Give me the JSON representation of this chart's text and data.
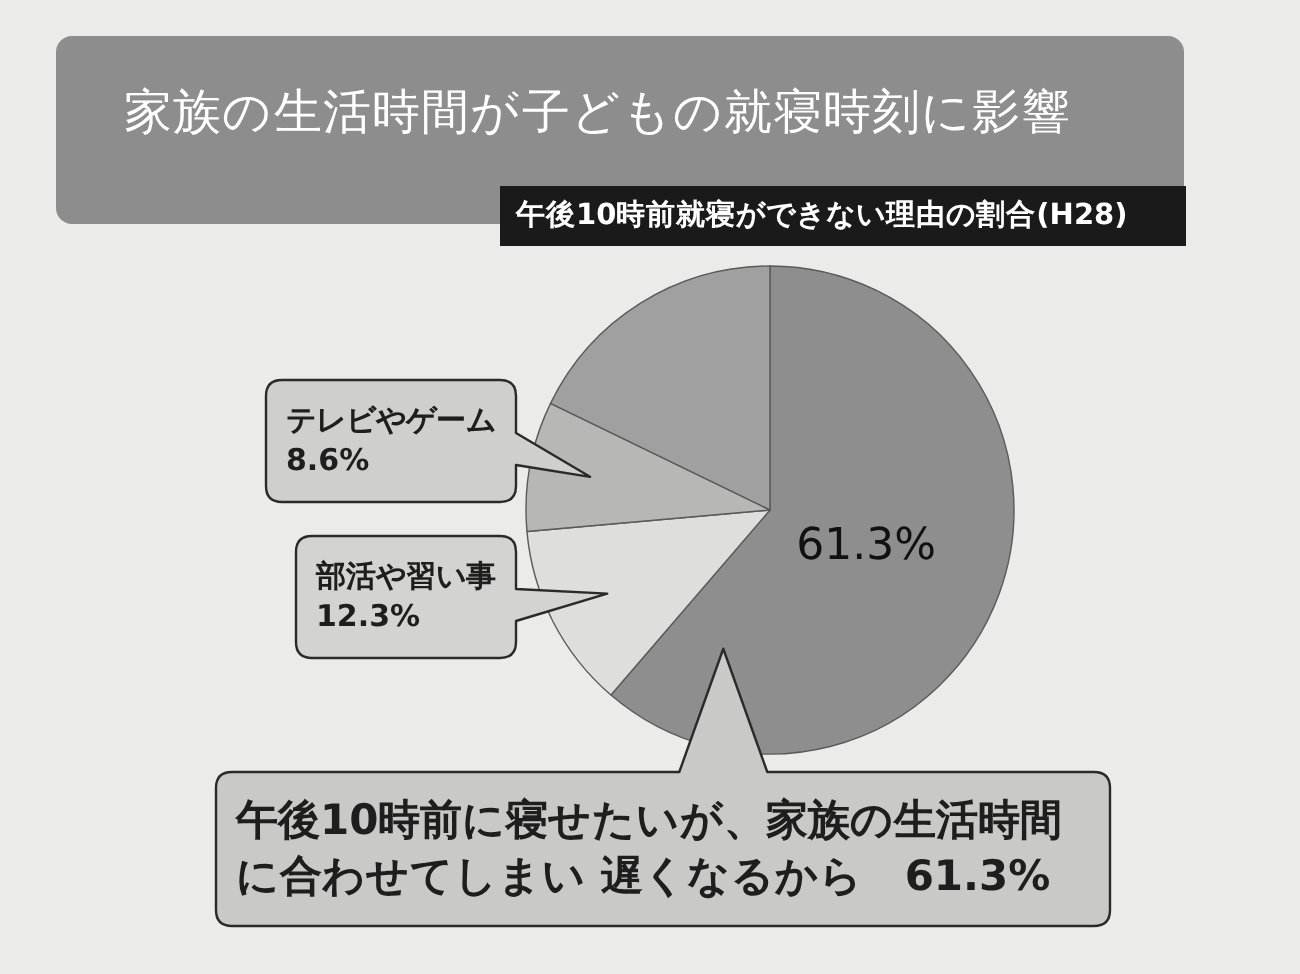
{
  "chart_data": {
    "type": "pie",
    "title": "家族の生活時間が子どもの就寝時刻に影響",
    "subtitle": "午後10時前就寝ができない理由の割合(H28)",
    "categories": [
      "午後10時前に寝せたいが、家族の生活時間に合わせてしまい 遅くなるから",
      "部活や習い事",
      "テレビやゲーム",
      null
    ],
    "values": [
      61.3,
      12.3,
      8.6,
      17.8
    ],
    "colors": [
      "#8e8e8e",
      "#dededc",
      "#b7b7b5",
      "#a0a0a0"
    ],
    "value_labels": [
      "61.3%",
      "12.3%",
      "8.6%",
      null
    ],
    "annotations": [
      "61.3%"
    ]
  }
}
